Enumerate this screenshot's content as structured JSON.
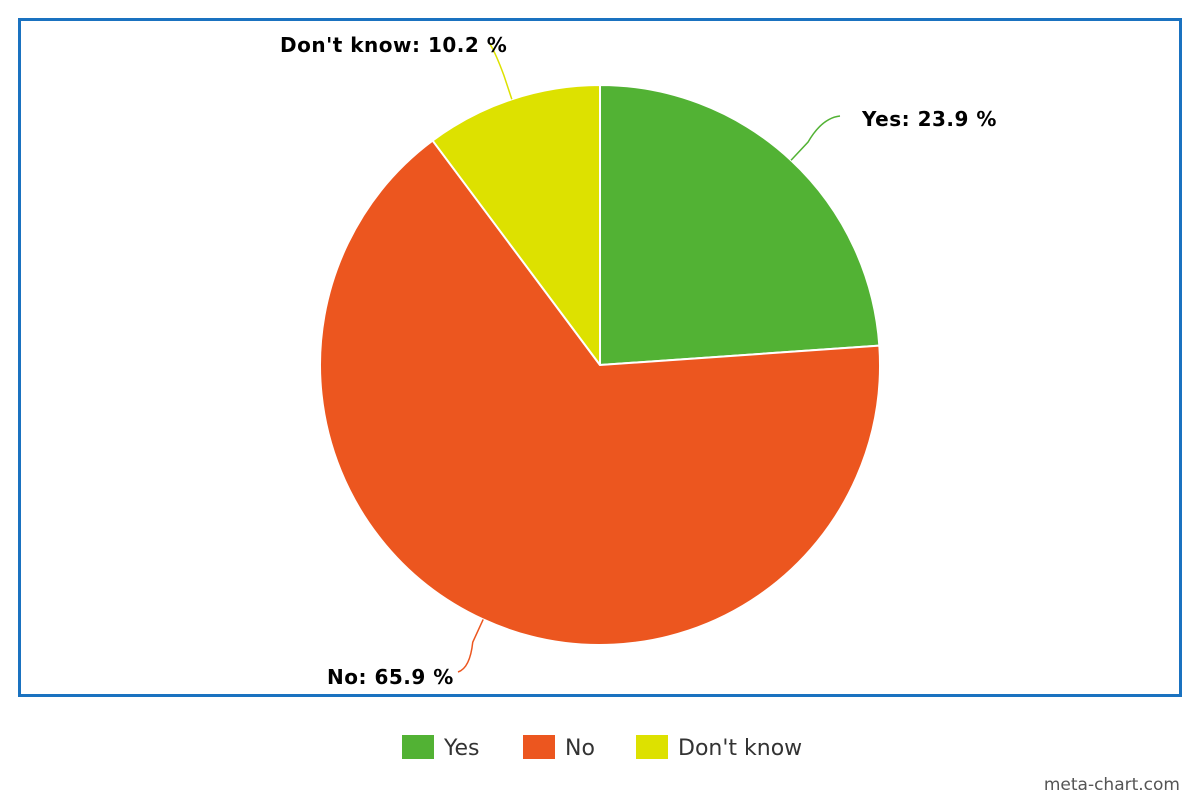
{
  "chart_data": {
    "type": "pie",
    "categories": [
      "Yes",
      "No",
      "Don't know"
    ],
    "values": [
      23.9,
      65.9,
      10.2
    ],
    "unit": "%",
    "slice_labels": [
      "Yes: 23.9 %",
      "No: 65.9 %",
      "Don't know: 10.2 %"
    ],
    "colors": [
      "#52b234",
      "#ec561f",
      "#dde100"
    ],
    "start_angle_deg": 0,
    "direction": "clockwise",
    "legend": {
      "position": "bottom",
      "entries": [
        "Yes",
        "No",
        "Don't know"
      ]
    },
    "title": ""
  },
  "frame": {
    "border_color": "#1a72c0"
  },
  "credit": {
    "text": "meta-chart.com"
  }
}
